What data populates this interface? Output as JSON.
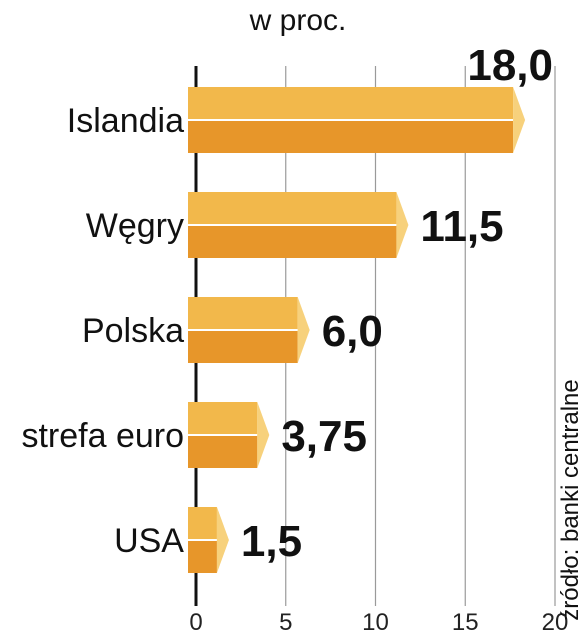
{
  "chart_data": {
    "type": "bar",
    "orientation": "horizontal",
    "unit_label": "w proc.",
    "source": "źródło: banki centralne",
    "categories": [
      "Islandia",
      "Węgry",
      "Polska",
      "strefa euro",
      "USA"
    ],
    "values": [
      18.0,
      11.5,
      6.0,
      3.75,
      1.5
    ],
    "value_labels": [
      "18,0",
      "11,5",
      "6,0",
      "3,75",
      "1,5"
    ],
    "xlim": [
      0,
      20
    ],
    "xticks": [
      0,
      5,
      10,
      15,
      20
    ],
    "xtick_labels": [
      "0",
      "5",
      "10",
      "15",
      "20"
    ],
    "grid": "vertical",
    "colors": {
      "bar_top": "#f2b84b",
      "bar_bottom": "#e7962a",
      "bar_cap": "#f7d17c",
      "grid": "#9a9a9a",
      "axis": "#111111"
    }
  }
}
